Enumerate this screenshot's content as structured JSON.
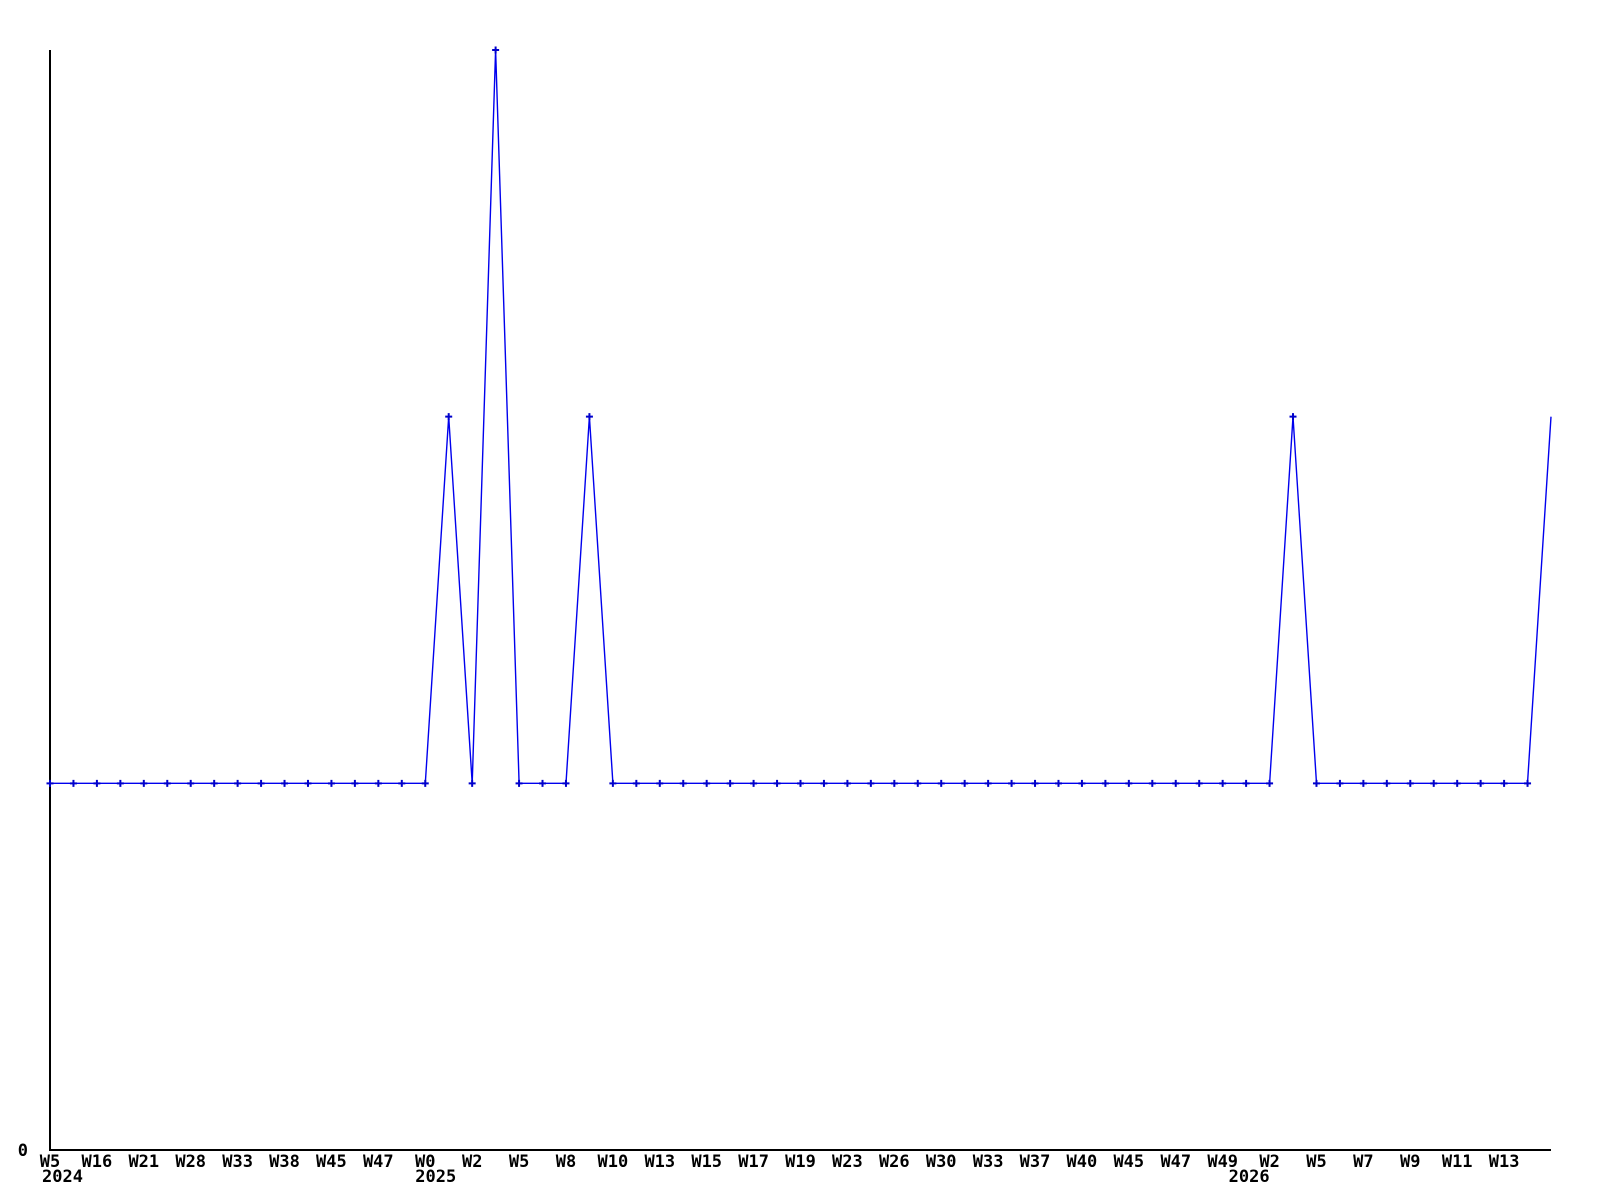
{
  "chart_data": {
    "type": "line",
    "title": "",
    "xlabel": "",
    "ylabel": "",
    "y_origin_label": "0",
    "ylim": [
      0,
      3
    ],
    "grid": false,
    "legend": "none",
    "line_color": "#0000ee",
    "marker_color": "#0000cc",
    "axis_color": "#000000",
    "marker_style": "plus",
    "series": [
      {
        "name": "weekly-activity-count",
        "values": [
          1,
          1,
          1,
          1,
          1,
          1,
          1,
          1,
          1,
          1,
          1,
          1,
          1,
          1,
          1,
          1,
          1,
          2,
          1,
          3,
          1,
          1,
          1,
          2,
          1,
          1,
          1,
          1,
          1,
          1,
          1,
          1,
          1,
          1,
          1,
          1,
          1,
          1,
          1,
          1,
          1,
          1,
          1,
          1,
          1,
          1,
          1,
          1,
          1,
          1,
          1,
          1,
          1,
          2,
          1,
          1,
          1,
          1,
          1,
          1,
          1,
          1,
          1,
          1,
          2
        ]
      }
    ],
    "x_ticks": [
      {
        "i": 0,
        "label": "W5",
        "year": "2024"
      },
      {
        "i": 2,
        "label": "W16"
      },
      {
        "i": 4,
        "label": "W21"
      },
      {
        "i": 6,
        "label": "W28"
      },
      {
        "i": 8,
        "label": "W33"
      },
      {
        "i": 10,
        "label": "W38"
      },
      {
        "i": 12,
        "label": "W45"
      },
      {
        "i": 14,
        "label": "W47"
      },
      {
        "i": 16,
        "label": "W0",
        "year": "2025"
      },
      {
        "i": 18,
        "label": "W2"
      },
      {
        "i": 20,
        "label": "W5"
      },
      {
        "i": 22,
        "label": "W8"
      },
      {
        "i": 24,
        "label": "W10"
      },
      {
        "i": 26,
        "label": "W13"
      },
      {
        "i": 28,
        "label": "W15"
      },
      {
        "i": 30,
        "label": "W17"
      },
      {
        "i": 32,
        "label": "W19"
      },
      {
        "i": 34,
        "label": "W23"
      },
      {
        "i": 36,
        "label": "W26"
      },
      {
        "i": 38,
        "label": "W30"
      },
      {
        "i": 40,
        "label": "W33"
      },
      {
        "i": 42,
        "label": "W37"
      },
      {
        "i": 44,
        "label": "W40"
      },
      {
        "i": 46,
        "label": "W45"
      },
      {
        "i": 48,
        "label": "W47"
      },
      {
        "i": 50,
        "label": "W49"
      },
      {
        "i": 52,
        "label": "W2",
        "year": "2026"
      },
      {
        "i": 54,
        "label": "W5"
      },
      {
        "i": 56,
        "label": "W7"
      },
      {
        "i": 58,
        "label": "W9"
      },
      {
        "i": 60,
        "label": "W11"
      },
      {
        "i": 62,
        "label": "W13"
      }
    ]
  }
}
